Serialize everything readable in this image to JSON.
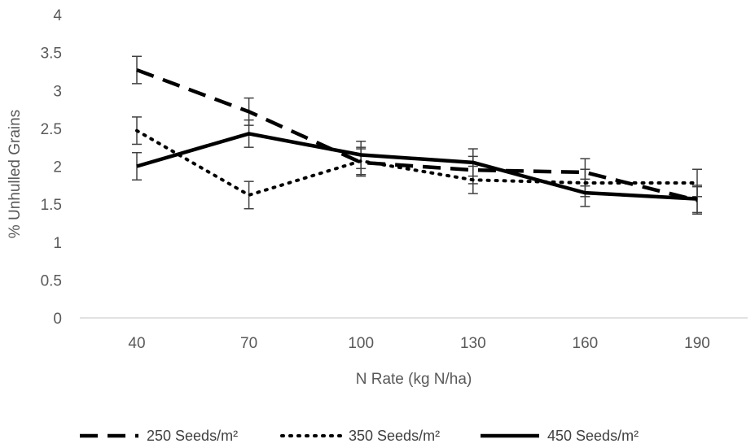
{
  "chart_data": {
    "type": "line",
    "xlabel": "N Rate (kg N/ha)",
    "ylabel": "% Unhulled Grains",
    "categories": [
      "40",
      "70",
      "100",
      "130",
      "160",
      "190"
    ],
    "ylim": [
      0,
      4
    ],
    "yticks": [
      "0",
      "0.5",
      "1",
      "1.5",
      "2",
      "2.5",
      "3",
      "3.5",
      "4"
    ],
    "grid": false,
    "legend_position": "bottom",
    "series": [
      {
        "name": "250 Seeds/m²",
        "style": "dashed",
        "color": "#000000",
        "values": [
          3.27,
          2.72,
          2.05,
          1.95,
          1.92,
          1.55
        ],
        "error": [
          0.18,
          0.18,
          0.18,
          0.18,
          0.18,
          0.18
        ]
      },
      {
        "name": "350 Seeds/m²",
        "style": "dotted",
        "color": "#000000",
        "values": [
          2.47,
          1.62,
          2.07,
          1.82,
          1.78,
          1.78
        ],
        "error": [
          0.18,
          0.18,
          0.18,
          0.18,
          0.18,
          0.18
        ]
      },
      {
        "name": "450 Seeds/m²",
        "style": "solid",
        "color": "#000000",
        "values": [
          2.0,
          2.43,
          2.15,
          2.05,
          1.65,
          1.57
        ],
        "error": [
          0.18,
          0.18,
          0.18,
          0.18,
          0.18,
          0.18
        ]
      }
    ]
  }
}
